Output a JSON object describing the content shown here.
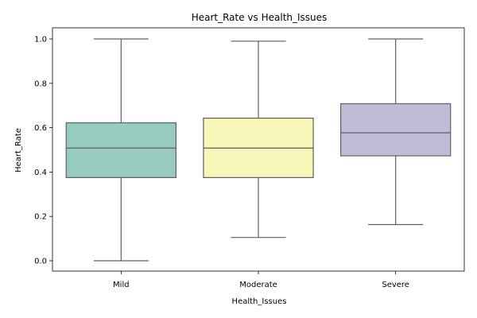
{
  "chart_data": {
    "type": "box",
    "title": "Heart_Rate vs Health_Issues",
    "xlabel": "Health_Issues",
    "ylabel": "Heart_Rate",
    "ylim": [
      -0.05,
      1.05
    ],
    "yticks": [
      "0.0",
      "0.2",
      "0.4",
      "0.6",
      "0.8",
      "1.0"
    ],
    "grid": false,
    "categories": [
      "Mild",
      "Moderate",
      "Severe"
    ],
    "boxes": [
      {
        "category": "Mild",
        "min": 0.0,
        "q1": 0.375,
        "median": 0.508,
        "q3": 0.622,
        "max": 1.0,
        "color": "#96cbc0"
      },
      {
        "category": "Moderate",
        "min": 0.105,
        "q1": 0.375,
        "median": 0.508,
        "q3": 0.643,
        "max": 0.99,
        "color": "#f6f6b9"
      },
      {
        "category": "Severe",
        "min": 0.163,
        "q1": 0.473,
        "median": 0.577,
        "q3": 0.708,
        "max": 1.0,
        "color": "#c0bcd8"
      }
    ]
  }
}
